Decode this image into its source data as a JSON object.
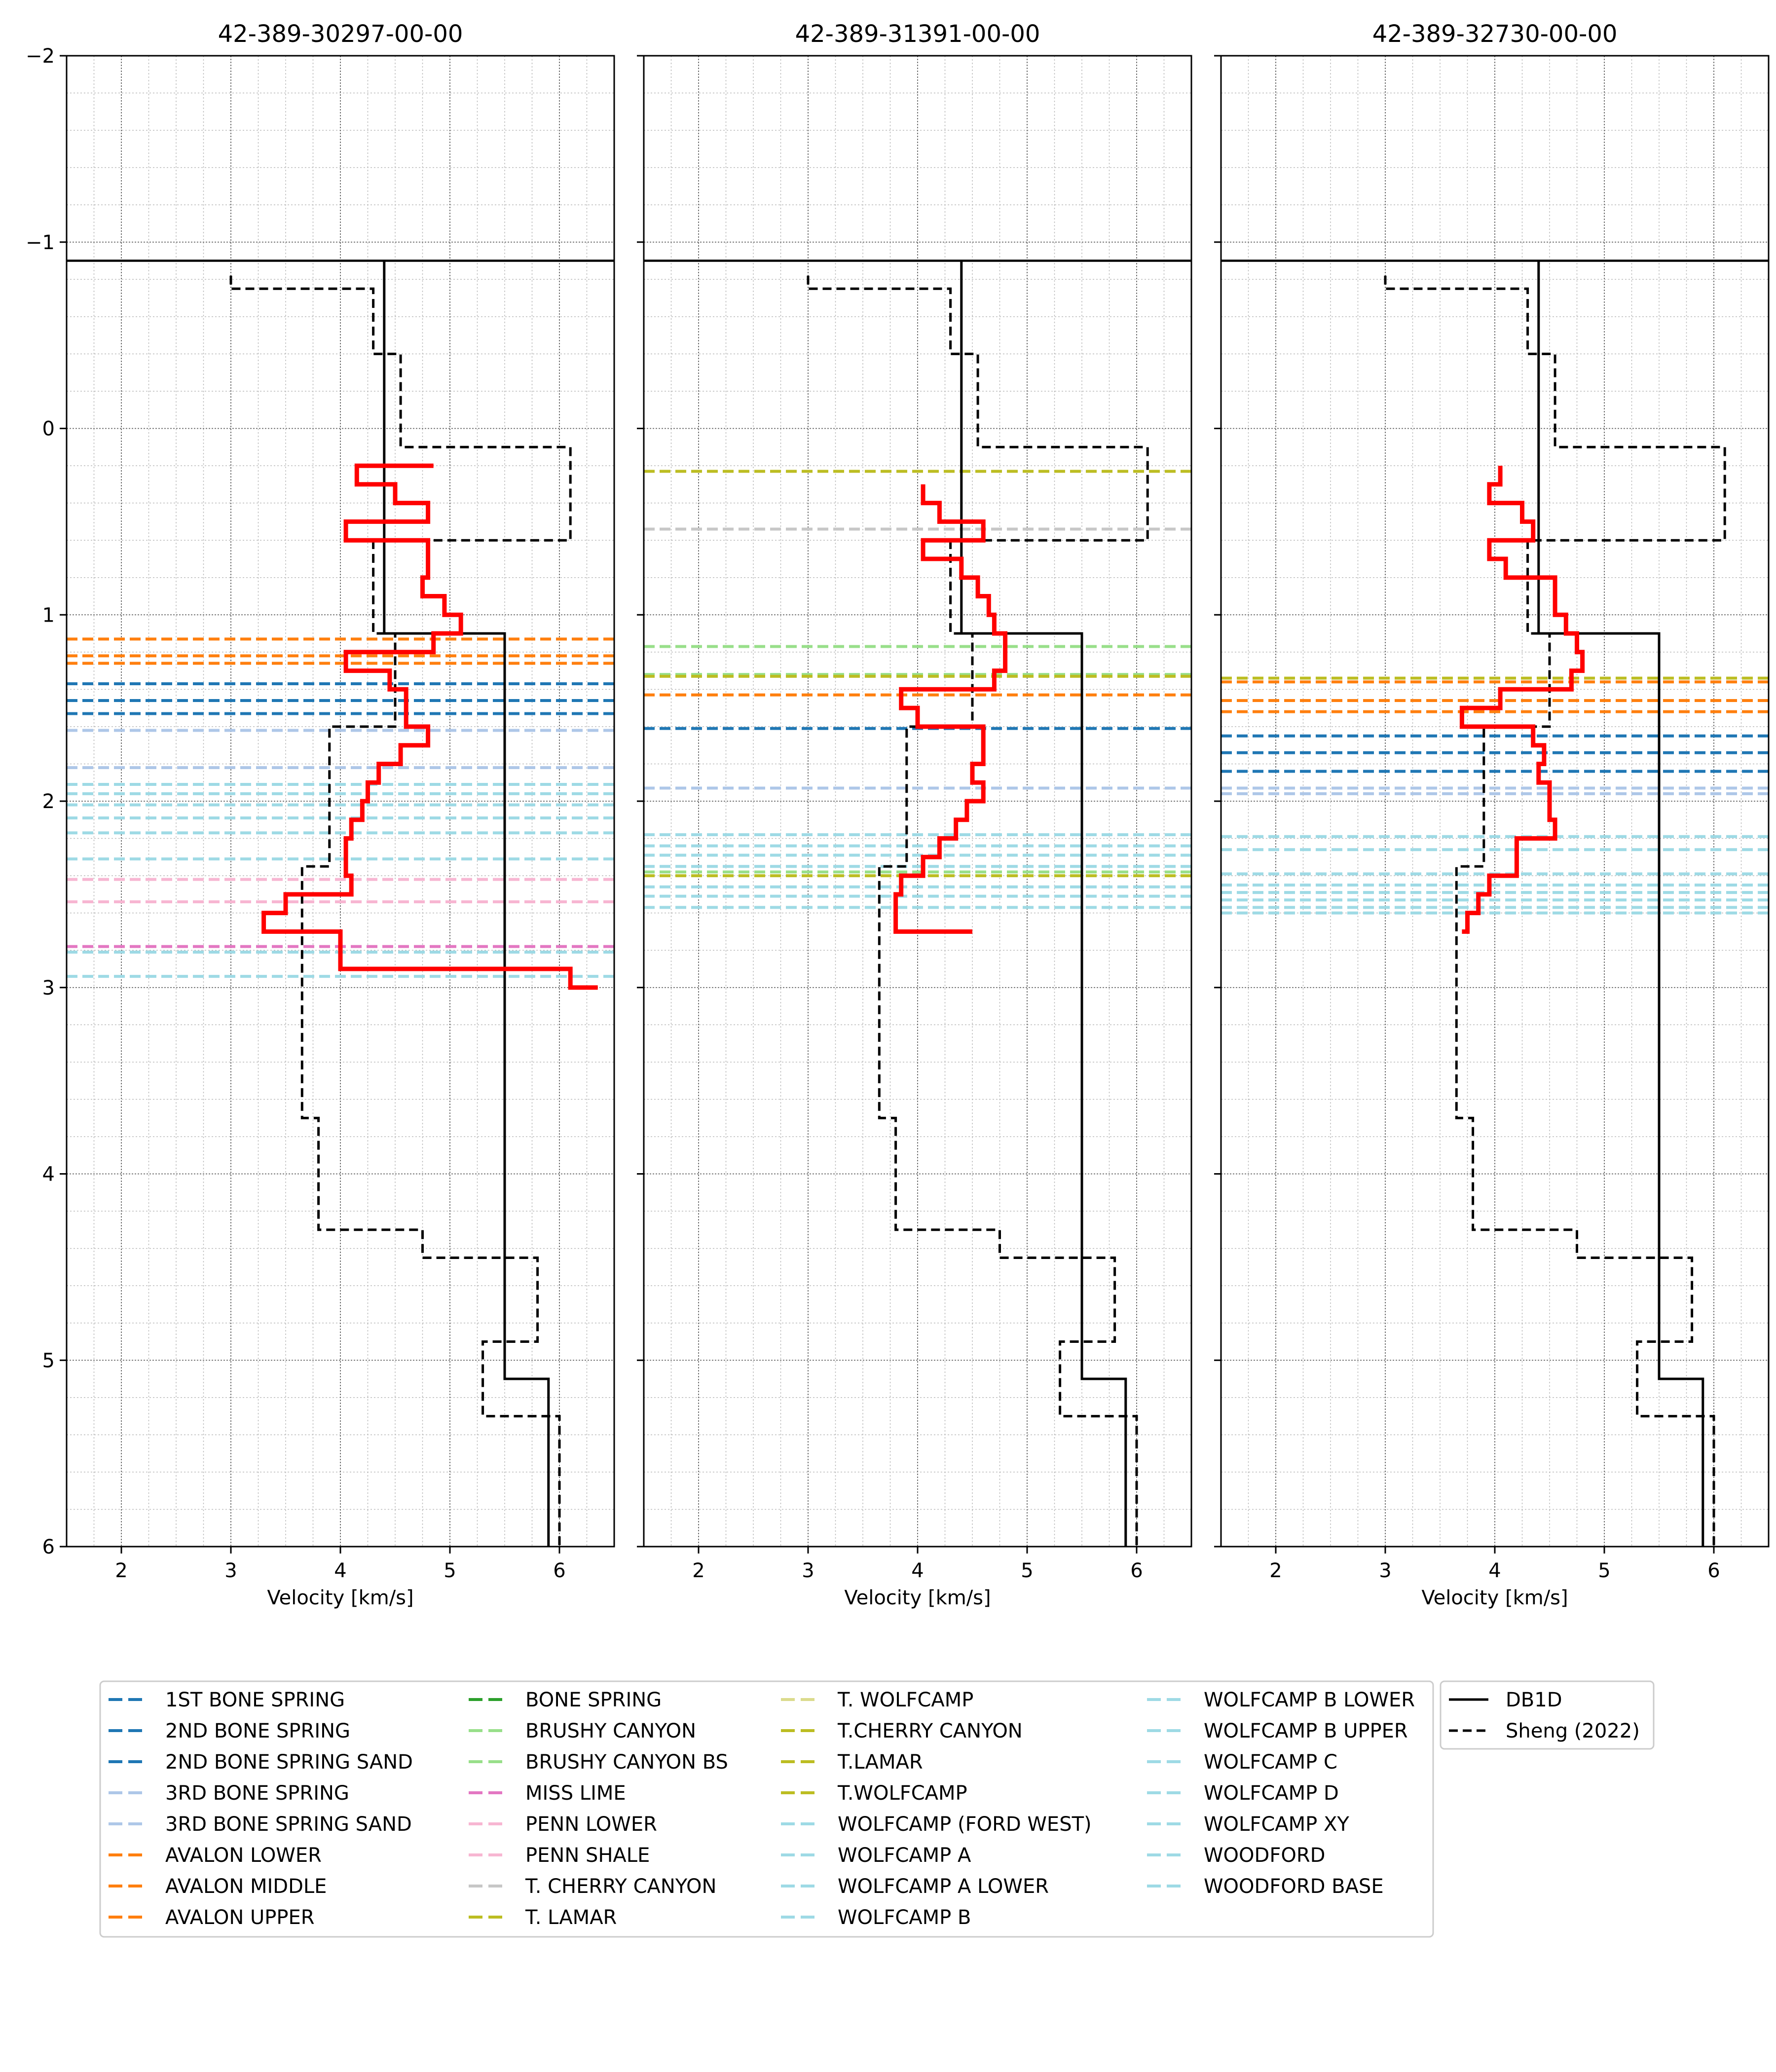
{
  "chart_data": {
    "type": "line",
    "panels": [
      {
        "title": "42-389-30297-00-00",
        "xlabel": "Velocity [km/s]",
        "red": [
          [
            4.85,
            0.2
          ],
          [
            4.15,
            0.2
          ],
          [
            4.15,
            0.3
          ],
          [
            4.5,
            0.3
          ],
          [
            4.5,
            0.4
          ],
          [
            4.8,
            0.4
          ],
          [
            4.8,
            0.5
          ],
          [
            4.05,
            0.5
          ],
          [
            4.05,
            0.6
          ],
          [
            4.8,
            0.6
          ],
          [
            4.8,
            0.8
          ],
          [
            4.75,
            0.8
          ],
          [
            4.75,
            0.9
          ],
          [
            4.95,
            0.9
          ],
          [
            4.95,
            1.0
          ],
          [
            5.1,
            1.0
          ],
          [
            5.1,
            1.1
          ],
          [
            4.85,
            1.1
          ],
          [
            4.85,
            1.2
          ],
          [
            4.05,
            1.2
          ],
          [
            4.05,
            1.3
          ],
          [
            4.45,
            1.3
          ],
          [
            4.45,
            1.4
          ],
          [
            4.6,
            1.4
          ],
          [
            4.6,
            1.6
          ],
          [
            4.8,
            1.6
          ],
          [
            4.8,
            1.7
          ],
          [
            4.55,
            1.7
          ],
          [
            4.55,
            1.8
          ],
          [
            4.35,
            1.8
          ],
          [
            4.35,
            1.9
          ],
          [
            4.25,
            1.9
          ],
          [
            4.25,
            2.0
          ],
          [
            4.2,
            2.0
          ],
          [
            4.2,
            2.1
          ],
          [
            4.1,
            2.1
          ],
          [
            4.1,
            2.2
          ],
          [
            4.05,
            2.2
          ],
          [
            4.05,
            2.4
          ],
          [
            4.1,
            2.4
          ],
          [
            4.1,
            2.5
          ],
          [
            3.5,
            2.5
          ],
          [
            3.5,
            2.6
          ],
          [
            3.3,
            2.6
          ],
          [
            3.3,
            2.7
          ],
          [
            4.0,
            2.7
          ],
          [
            4.0,
            2.9
          ],
          [
            6.1,
            2.9
          ],
          [
            6.1,
            3.0
          ],
          [
            6.35,
            3.0
          ]
        ],
        "formations": [
          {
            "depth": 1.13,
            "color": "#ff7f0e"
          },
          {
            "depth": 1.22,
            "color": "#ff7f0e"
          },
          {
            "depth": 1.26,
            "color": "#ff7f0e"
          },
          {
            "depth": 1.37,
            "color": "#1f77b4"
          },
          {
            "depth": 1.46,
            "color": "#1f77b4"
          },
          {
            "depth": 1.53,
            "color": "#1f77b4"
          },
          {
            "depth": 1.62,
            "color": "#aec7e8"
          },
          {
            "depth": 1.82,
            "color": "#aec7e8"
          },
          {
            "depth": 1.91,
            "color": "#9edae5"
          },
          {
            "depth": 1.96,
            "color": "#9edae5"
          },
          {
            "depth": 2.02,
            "color": "#9edae5"
          },
          {
            "depth": 2.09,
            "color": "#9edae5"
          },
          {
            "depth": 2.17,
            "color": "#9edae5"
          },
          {
            "depth": 2.31,
            "color": "#9edae5"
          },
          {
            "depth": 2.42,
            "color": "#f7b6d2"
          },
          {
            "depth": 2.54,
            "color": "#f7b6d2"
          },
          {
            "depth": 2.78,
            "color": "#e377c2"
          },
          {
            "depth": 2.81,
            "color": "#9edae5"
          },
          {
            "depth": 2.94,
            "color": "#9edae5"
          }
        ]
      },
      {
        "title": "42-389-31391-00-00",
        "xlabel": "Velocity [km/s]",
        "red": [
          [
            4.05,
            0.3
          ],
          [
            4.05,
            0.4
          ],
          [
            4.2,
            0.4
          ],
          [
            4.2,
            0.5
          ],
          [
            4.6,
            0.5
          ],
          [
            4.6,
            0.6
          ],
          [
            4.05,
            0.6
          ],
          [
            4.05,
            0.7
          ],
          [
            4.4,
            0.7
          ],
          [
            4.4,
            0.8
          ],
          [
            4.55,
            0.8
          ],
          [
            4.55,
            0.9
          ],
          [
            4.65,
            0.9
          ],
          [
            4.65,
            1.0
          ],
          [
            4.7,
            1.0
          ],
          [
            4.7,
            1.1
          ],
          [
            4.8,
            1.1
          ],
          [
            4.8,
            1.3
          ],
          [
            4.7,
            1.3
          ],
          [
            4.7,
            1.4
          ],
          [
            3.85,
            1.4
          ],
          [
            3.85,
            1.5
          ],
          [
            4.0,
            1.5
          ],
          [
            4.0,
            1.6
          ],
          [
            4.6,
            1.6
          ],
          [
            4.6,
            1.8
          ],
          [
            4.5,
            1.8
          ],
          [
            4.5,
            1.9
          ],
          [
            4.6,
            1.9
          ],
          [
            4.6,
            2.0
          ],
          [
            4.45,
            2.0
          ],
          [
            4.45,
            2.1
          ],
          [
            4.35,
            2.1
          ],
          [
            4.35,
            2.2
          ],
          [
            4.2,
            2.2
          ],
          [
            4.2,
            2.3
          ],
          [
            4.05,
            2.3
          ],
          [
            4.05,
            2.4
          ],
          [
            3.85,
            2.4
          ],
          [
            3.85,
            2.5
          ],
          [
            3.8,
            2.5
          ],
          [
            3.8,
            2.7
          ],
          [
            4.5,
            2.7
          ]
        ],
        "formations": [
          {
            "depth": 0.23,
            "color": "#bcbd22"
          },
          {
            "depth": 0.54,
            "color": "#c7c7c7"
          },
          {
            "depth": 1.17,
            "color": "#98df8a"
          },
          {
            "depth": 1.32,
            "color": "#98df8a"
          },
          {
            "depth": 1.33,
            "color": "#bcbd22"
          },
          {
            "depth": 1.43,
            "color": "#ff7f0e"
          },
          {
            "depth": 1.61,
            "color": "#1f77b4"
          },
          {
            "depth": 1.93,
            "color": "#aec7e8"
          },
          {
            "depth": 2.18,
            "color": "#9edae5"
          },
          {
            "depth": 2.24,
            "color": "#9edae5"
          },
          {
            "depth": 2.29,
            "color": "#9edae5"
          },
          {
            "depth": 2.35,
            "color": "#9edae5"
          },
          {
            "depth": 2.38,
            "color": "#98df8a"
          },
          {
            "depth": 2.4,
            "color": "#bcbd22"
          },
          {
            "depth": 2.46,
            "color": "#9edae5"
          },
          {
            "depth": 2.51,
            "color": "#9edae5"
          },
          {
            "depth": 2.57,
            "color": "#9edae5"
          }
        ]
      },
      {
        "title": "42-389-32730-00-00",
        "xlabel": "Velocity [km/s]",
        "red": [
          [
            4.05,
            0.2
          ],
          [
            4.05,
            0.3
          ],
          [
            3.95,
            0.3
          ],
          [
            3.95,
            0.4
          ],
          [
            4.25,
            0.4
          ],
          [
            4.25,
            0.5
          ],
          [
            4.35,
            0.5
          ],
          [
            4.35,
            0.6
          ],
          [
            3.95,
            0.6
          ],
          [
            3.95,
            0.7
          ],
          [
            4.1,
            0.7
          ],
          [
            4.1,
            0.8
          ],
          [
            4.55,
            0.8
          ],
          [
            4.55,
            1.0
          ],
          [
            4.65,
            1.0
          ],
          [
            4.65,
            1.1
          ],
          [
            4.75,
            1.1
          ],
          [
            4.75,
            1.2
          ],
          [
            4.8,
            1.2
          ],
          [
            4.8,
            1.3
          ],
          [
            4.7,
            1.3
          ],
          [
            4.7,
            1.4
          ],
          [
            4.05,
            1.4
          ],
          [
            4.05,
            1.5
          ],
          [
            3.7,
            1.5
          ],
          [
            3.7,
            1.6
          ],
          [
            4.35,
            1.6
          ],
          [
            4.35,
            1.7
          ],
          [
            4.45,
            1.7
          ],
          [
            4.45,
            1.8
          ],
          [
            4.4,
            1.8
          ],
          [
            4.4,
            1.9
          ],
          [
            4.5,
            1.9
          ],
          [
            4.5,
            2.1
          ],
          [
            4.55,
            2.1
          ],
          [
            4.55,
            2.2
          ],
          [
            4.2,
            2.2
          ],
          [
            4.2,
            2.4
          ],
          [
            3.95,
            2.4
          ],
          [
            3.95,
            2.5
          ],
          [
            3.85,
            2.5
          ],
          [
            3.85,
            2.6
          ],
          [
            3.75,
            2.6
          ],
          [
            3.75,
            2.7
          ],
          [
            3.7,
            2.7
          ]
        ],
        "formations": [
          {
            "depth": 1.34,
            "color": "#bcbd22"
          },
          {
            "depth": 1.36,
            "color": "#ff7f0e"
          },
          {
            "depth": 1.46,
            "color": "#ff7f0e"
          },
          {
            "depth": 1.52,
            "color": "#ff7f0e"
          },
          {
            "depth": 1.65,
            "color": "#1f77b4"
          },
          {
            "depth": 1.74,
            "color": "#1f77b4"
          },
          {
            "depth": 1.84,
            "color": "#1f77b4"
          },
          {
            "depth": 1.93,
            "color": "#aec7e8"
          },
          {
            "depth": 1.96,
            "color": "#aec7e8"
          },
          {
            "depth": 2.19,
            "color": "#9edae5"
          },
          {
            "depth": 2.26,
            "color": "#9edae5"
          },
          {
            "depth": 2.39,
            "color": "#9edae5"
          },
          {
            "depth": 2.45,
            "color": "#9edae5"
          },
          {
            "depth": 2.49,
            "color": "#9edae5"
          },
          {
            "depth": 2.53,
            "color": "#9edae5"
          },
          {
            "depth": 2.57,
            "color": "#9edae5"
          },
          {
            "depth": 2.6,
            "color": "#9edae5"
          }
        ]
      }
    ],
    "db1d": [
      [
        4.4,
        -0.9
      ],
      [
        4.4,
        1.1
      ],
      [
        5.5,
        1.1
      ],
      [
        5.5,
        5.1
      ],
      [
        5.9,
        5.1
      ],
      [
        5.9,
        6.0
      ]
    ],
    "sheng": [
      [
        3.0,
        -0.82
      ],
      [
        3.0,
        -0.75
      ],
      [
        4.3,
        -0.75
      ],
      [
        4.3,
        -0.4
      ],
      [
        4.55,
        -0.4
      ],
      [
        4.55,
        0.1
      ],
      [
        6.1,
        0.1
      ],
      [
        6.1,
        0.6
      ],
      [
        4.3,
        0.6
      ],
      [
        4.3,
        1.1
      ],
      [
        4.5,
        1.1
      ],
      [
        4.5,
        1.6
      ],
      [
        3.9,
        1.6
      ],
      [
        3.9,
        2.35
      ],
      [
        3.65,
        2.35
      ],
      [
        3.65,
        3.7
      ],
      [
        3.8,
        3.7
      ],
      [
        3.8,
        4.3
      ],
      [
        4.75,
        4.3
      ],
      [
        4.75,
        4.45
      ],
      [
        5.8,
        4.45
      ],
      [
        5.8,
        4.9
      ],
      [
        5.3,
        4.9
      ],
      [
        5.3,
        5.3
      ],
      [
        6.0,
        5.3
      ],
      [
        6.0,
        6.0
      ]
    ],
    "xlim": [
      1.5,
      6.5
    ],
    "ylim": [
      6,
      -2
    ],
    "x_ticks": [
      "2",
      "3",
      "4",
      "5",
      "6"
    ],
    "y_ticks": [
      "−2",
      "−1",
      "0",
      "1",
      "2",
      "3",
      "4",
      "5",
      "6"
    ],
    "legend": [
      {
        "label": "1ST BONE SPRING",
        "color": "#1f77b4"
      },
      {
        "label": "2ND BONE SPRING",
        "color": "#1f77b4"
      },
      {
        "label": "2ND BONE SPRING SAND",
        "color": "#1f77b4"
      },
      {
        "label": "3RD BONE SPRING",
        "color": "#aec7e8"
      },
      {
        "label": "3RD BONE SPRING SAND",
        "color": "#aec7e8"
      },
      {
        "label": "AVALON LOWER",
        "color": "#ff7f0e"
      },
      {
        "label": "AVALON MIDDLE",
        "color": "#ff7f0e"
      },
      {
        "label": "AVALON UPPER",
        "color": "#ff7f0e"
      },
      {
        "label": "BONE SPRING",
        "color": "#2ca02c"
      },
      {
        "label": "BRUSHY CANYON",
        "color": "#98df8a"
      },
      {
        "label": "BRUSHY CANYON BS",
        "color": "#98df8a"
      },
      {
        "label": "MISS LIME",
        "color": "#e377c2"
      },
      {
        "label": "PENN LOWER",
        "color": "#f7b6d2"
      },
      {
        "label": "PENN SHALE",
        "color": "#f7b6d2"
      },
      {
        "label": "T. CHERRY CANYON",
        "color": "#c7c7c7"
      },
      {
        "label": "T. LAMAR",
        "color": "#bcbd22"
      },
      {
        "label": "T. WOLFCAMP",
        "color": "#dbdb8d"
      },
      {
        "label": "T.CHERRY CANYON",
        "color": "#bcbd22"
      },
      {
        "label": "T.LAMAR",
        "color": "#bcbd22"
      },
      {
        "label": "T.WOLFCAMP",
        "color": "#bcbd22"
      },
      {
        "label": "WOLFCAMP (FORD WEST)",
        "color": "#9edae5"
      },
      {
        "label": "WOLFCAMP A",
        "color": "#9edae5"
      },
      {
        "label": "WOLFCAMP A LOWER",
        "color": "#9edae5"
      },
      {
        "label": "WOLFCAMP B",
        "color": "#9edae5"
      },
      {
        "label": "WOLFCAMP B LOWER",
        "color": "#9edae5"
      },
      {
        "label": "WOLFCAMP B UPPER",
        "color": "#9edae5"
      },
      {
        "label": "WOLFCAMP C",
        "color": "#9edae5"
      },
      {
        "label": "WOLFCAMP D",
        "color": "#9edae5"
      },
      {
        "label": "WOLFCAMP XY",
        "color": "#9edae5"
      },
      {
        "label": "WOODFORD",
        "color": "#9edae5"
      },
      {
        "label": "WOODFORD BASE",
        "color": "#9edae5"
      }
    ],
    "legend2": [
      {
        "label": "DB1D",
        "style": "solid"
      },
      {
        "label": "Sheng (2022)",
        "style": "dashed"
      }
    ]
  }
}
